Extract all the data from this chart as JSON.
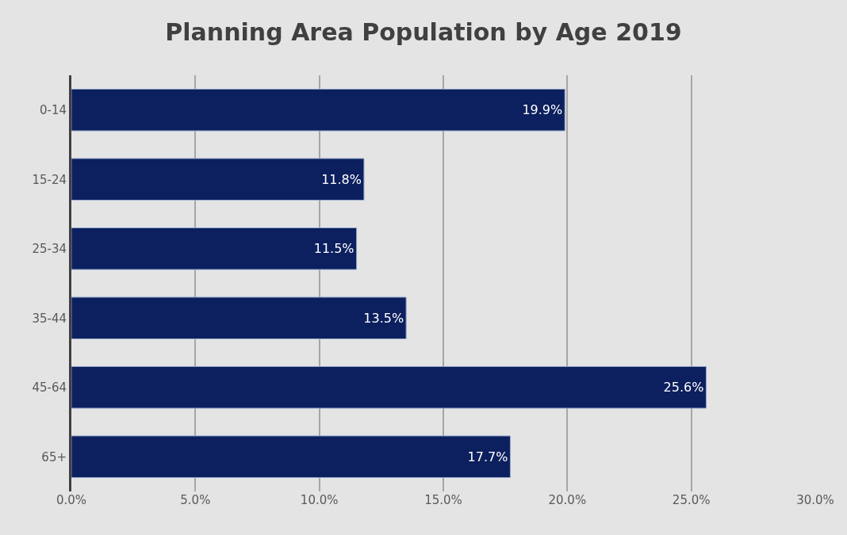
{
  "chart_data": {
    "type": "bar",
    "orientation": "horizontal",
    "title": "Planning Area Population by Age 2019",
    "categories": [
      "0-14",
      "15-24",
      "25-34",
      "35-44",
      "45-64",
      "65+"
    ],
    "values": [
      19.9,
      11.8,
      11.5,
      13.5,
      25.6,
      17.7
    ],
    "value_labels": [
      "19.9%",
      "11.8%",
      "11.5%",
      "13.5%",
      "25.6%",
      "17.7%"
    ],
    "color": "#0c1f5e",
    "xlim": [
      0,
      30
    ],
    "xticks": [
      {
        "value": 0,
        "label": "0.0%"
      },
      {
        "value": 5,
        "label": "5.0%"
      },
      {
        "value": 10,
        "label": "10.0%"
      },
      {
        "value": 15,
        "label": "15.0%"
      },
      {
        "value": 20,
        "label": "20.0%"
      },
      {
        "value": 25,
        "label": "25.0%"
      },
      {
        "value": 30,
        "label": "30.0%"
      }
    ],
    "grid": "x",
    "legend": false
  }
}
